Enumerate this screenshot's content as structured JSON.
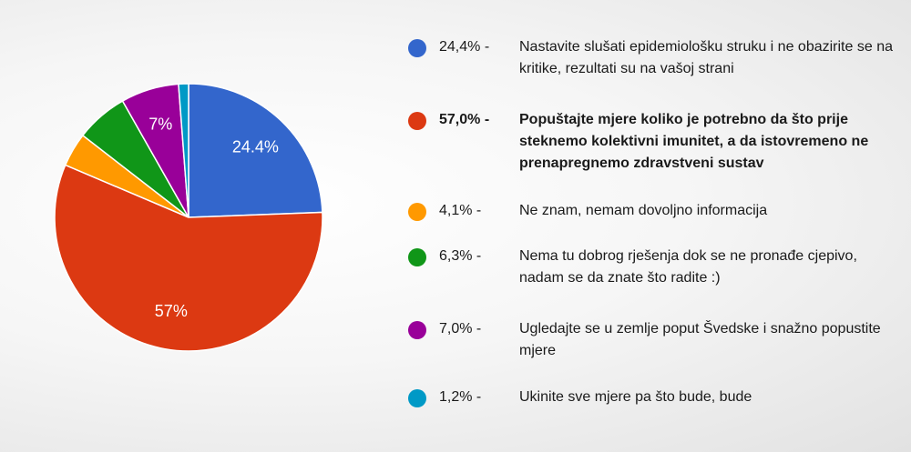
{
  "chart_data": {
    "type": "pie",
    "start_angle_deg": 90,
    "direction": "clockwise",
    "slices": [
      {
        "name": "Nastavite slušati epidemiološku struku i ne obazirite se na kritike, rezultati su na vašoj strani",
        "value": 24.4,
        "legend_value": "24,4%",
        "legend_suffix": "-",
        "color": "#3366cc",
        "label": "24.4%",
        "bold": false
      },
      {
        "name": "Popuštajte mjere koliko je potrebno da što prije steknemo kolektivni imunitet, a da istovremeno ne prenapregnemo zdravstveni sustav",
        "value": 57.0,
        "legend_value": "57,0%",
        "legend_suffix": "-",
        "color": "#dc3912",
        "label": "57%",
        "bold": true
      },
      {
        "name": "Ne znam, nemam dovoljno informacija",
        "value": 4.1,
        "legend_value": "4,1%",
        "legend_suffix": "-",
        "color": "#ff9900",
        "label": "",
        "bold": false
      },
      {
        "name": "Nema tu dobrog rješenja dok se ne pronađe cjepivo, nadam se da znate što radite :)",
        "value": 6.3,
        "legend_value": "6,3%",
        "legend_suffix": "-",
        "color": "#109618",
        "label": "",
        "bold": false
      },
      {
        "name": "Ugledajte se u zemlje poput Švedske i snažno popustite mjere",
        "value": 7.0,
        "legend_value": "7,0%",
        "legend_suffix": "-",
        "color": "#990099",
        "label": "7%",
        "bold": false
      },
      {
        "name": "Ukinite sve mjere pa što bude, bude",
        "value": 1.2,
        "legend_value": "1,2%",
        "legend_suffix": "-",
        "color": "#0099c6",
        "label": "",
        "bold": false
      }
    ]
  }
}
